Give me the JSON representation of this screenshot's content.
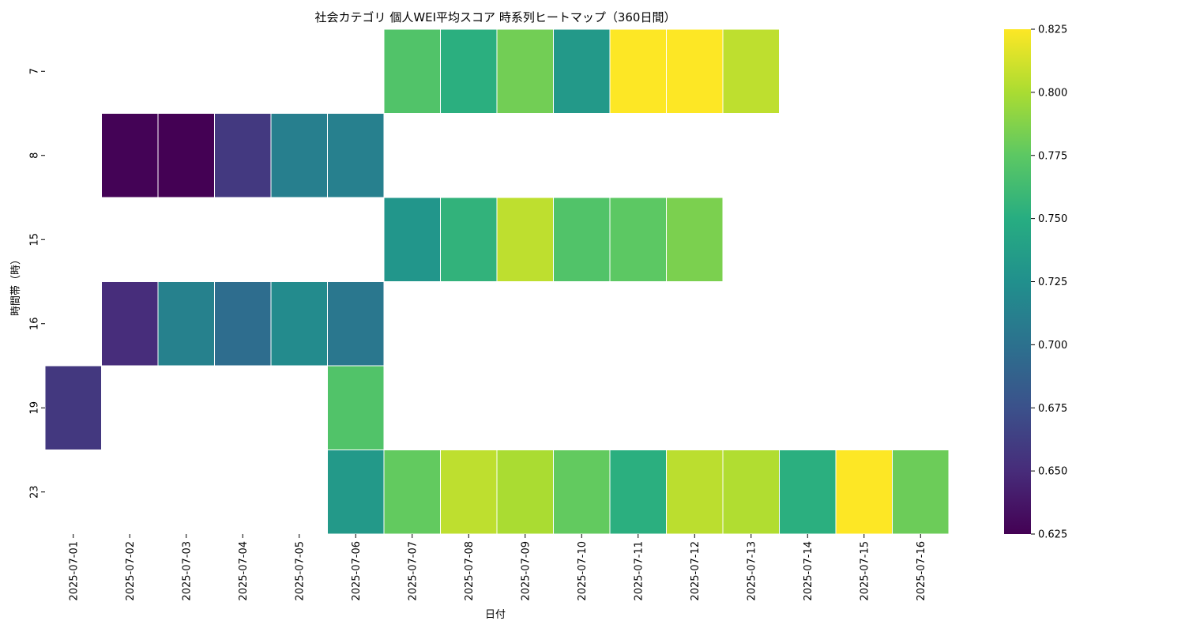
{
  "chart_data": {
    "type": "heatmap",
    "title": "社会カテゴリ 個人WEI平均スコア 時系列ヒートマップ（360日間）",
    "xlabel": "日付",
    "ylabel": "時間帯（時）",
    "colormap": "viridis",
    "x": [
      "2025-07-01",
      "2025-07-02",
      "2025-07-03",
      "2025-07-04",
      "2025-07-05",
      "2025-07-06",
      "2025-07-07",
      "2025-07-08",
      "2025-07-09",
      "2025-07-10",
      "2025-07-11",
      "2025-07-12",
      "2025-07-13",
      "2025-07-14",
      "2025-07-15",
      "2025-07-16"
    ],
    "y": [
      "7",
      "8",
      "15",
      "16",
      "19",
      "23"
    ],
    "values": [
      [
        null,
        null,
        null,
        null,
        null,
        null,
        0.77,
        0.752,
        0.782,
        0.733,
        0.825,
        0.825,
        0.806,
        null,
        null,
        null
      ],
      [
        null,
        0.626,
        0.625,
        0.659,
        0.711,
        0.712,
        null,
        null,
        null,
        null,
        null,
        null,
        null,
        null,
        null,
        null
      ],
      [
        null,
        null,
        null,
        null,
        null,
        null,
        0.73,
        0.755,
        0.806,
        0.77,
        0.775,
        0.785,
        null,
        null,
        null,
        null
      ],
      [
        null,
        0.651,
        0.713,
        0.697,
        0.721,
        0.705,
        null,
        null,
        null,
        null,
        null,
        null,
        null,
        null,
        null,
        null
      ],
      [
        0.658,
        null,
        null,
        null,
        null,
        0.77,
        null,
        null,
        null,
        null,
        null,
        null,
        null,
        null,
        null,
        null
      ],
      [
        null,
        null,
        null,
        null,
        null,
        0.733,
        0.777,
        0.806,
        0.8,
        0.777,
        0.752,
        0.805,
        0.802,
        0.752,
        0.825,
        0.78
      ]
    ],
    "colorbar": {
      "min": 0.625,
      "max": 0.825,
      "ticks": [
        "0.625",
        "0.650",
        "0.675",
        "0.700",
        "0.725",
        "0.750",
        "0.775",
        "0.800",
        "0.825"
      ]
    }
  }
}
